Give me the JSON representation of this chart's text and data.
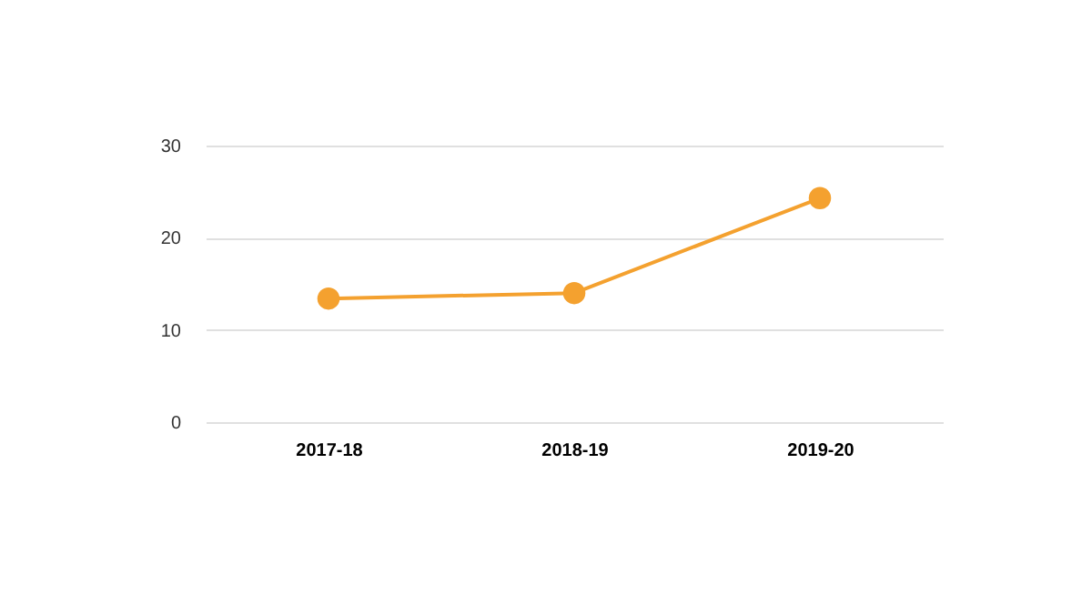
{
  "chart_data": {
    "type": "line",
    "categories": [
      "2017-18",
      "2018-19",
      "2019-20"
    ],
    "series": [
      {
        "color": "#f4a12f",
        "values": [
          13.4,
          14.0,
          24.3
        ]
      }
    ],
    "ylim": [
      0,
      30
    ],
    "yticks": [
      0,
      10,
      20,
      30
    ],
    "grid": "y",
    "marker": "circle"
  }
}
